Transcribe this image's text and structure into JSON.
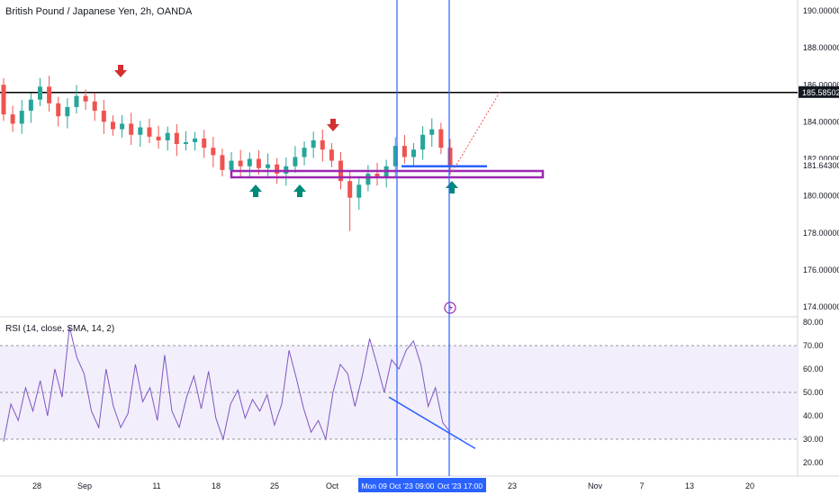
{
  "header": {
    "title": "British Pound / Japanese Yen, 2h, OANDA"
  },
  "rsi_panel": {
    "title": "RSI (14, close, SMA, 14, 2)"
  },
  "colors": {
    "background": "#ffffff",
    "candle_up": "#26a69a",
    "candle_down": "#ef5350",
    "resistance_line": "#000000",
    "support_box": "#9c27b0",
    "vertical_lines": "#2962ff",
    "rsi_line": "#7e57c2",
    "rsi_band_fill": "#f3eefb",
    "trendline": "#2962ff",
    "arrow_down": "#d32f2f",
    "arrow_up": "#00897b",
    "projection": "#ef5350",
    "axis_text": "#131722",
    "highlight_label": "#2962ff"
  },
  "chart_data": {
    "type": "candlestick",
    "symbol": "British Pound / Japanese Yen",
    "interval": "2h",
    "source": "OANDA",
    "price_axis": {
      "ticks": [
        "190.00000",
        "188.00000",
        "186.00000",
        "184.00000",
        "182.00000",
        "180.00000",
        "178.00000",
        "176.00000",
        "174.00000"
      ],
      "ylim": [
        173.5,
        190.5
      ]
    },
    "time_axis": {
      "ticks": [
        "28",
        "Sep",
        "11",
        "18",
        "25",
        "Oct",
        "23",
        "Nov",
        "7",
        "13",
        "20"
      ],
      "highlight_labels": [
        "Mon 09 Oct '23  09:00",
        "Oct '23  17:00"
      ]
    },
    "price_series_close": [
      184.4,
      183.9,
      184.6,
      185.2,
      185.9,
      185.0,
      184.3,
      184.8,
      185.4,
      185.1,
      184.6,
      184.0,
      183.6,
      183.9,
      183.3,
      183.7,
      183.2,
      183.0,
      183.4,
      182.8,
      182.9,
      183.1,
      182.6,
      182.2,
      181.4,
      181.9,
      181.6,
      182.0,
      181.5,
      181.7,
      181.2,
      181.6,
      182.1,
      182.6,
      183.0,
      182.5,
      181.9,
      180.8,
      179.9,
      180.6,
      181.2,
      181.0,
      181.6,
      182.7,
      182.1,
      182.5,
      183.3,
      183.6,
      182.6,
      181.6
    ],
    "price_range": {
      "high": 186.0,
      "low": 178.1
    },
    "levels": [
      {
        "price": 185.58502,
        "label": "185.58502"
      },
      {
        "price": 181.643,
        "label": "181.64300"
      }
    ],
    "rsi": {
      "ylim": [
        15,
        80
      ],
      "ticks": [
        "80.00",
        "70.00",
        "60.00",
        "50.00",
        "40.00",
        "30.00",
        "20.00"
      ],
      "overbought": 70,
      "oversold": 30,
      "mid": 50,
      "values": [
        29,
        45,
        38,
        52,
        42,
        55,
        40,
        60,
        48,
        78,
        65,
        58,
        42,
        35,
        60,
        44,
        35,
        41,
        62,
        46,
        52,
        38,
        66,
        42,
        35,
        48,
        57,
        43,
        59,
        39,
        30,
        45,
        51,
        39,
        47,
        42,
        49,
        36,
        45,
        68,
        56,
        43,
        33,
        38,
        30,
        50,
        62,
        58,
        44,
        57,
        73,
        62,
        50,
        64,
        60,
        68,
        72,
        62,
        44,
        52,
        37,
        33
      ]
    }
  }
}
